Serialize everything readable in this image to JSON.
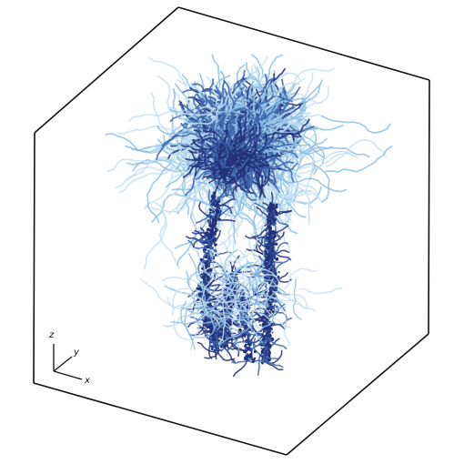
{
  "figure": {
    "axes": {
      "x": "x",
      "y": "y",
      "z": "z"
    },
    "colors": {
      "box": "#111111",
      "dark": "#23307a",
      "mid": "#3e66ad",
      "light": "#8cc0e4",
      "pale": "#c4e0f2"
    }
  }
}
